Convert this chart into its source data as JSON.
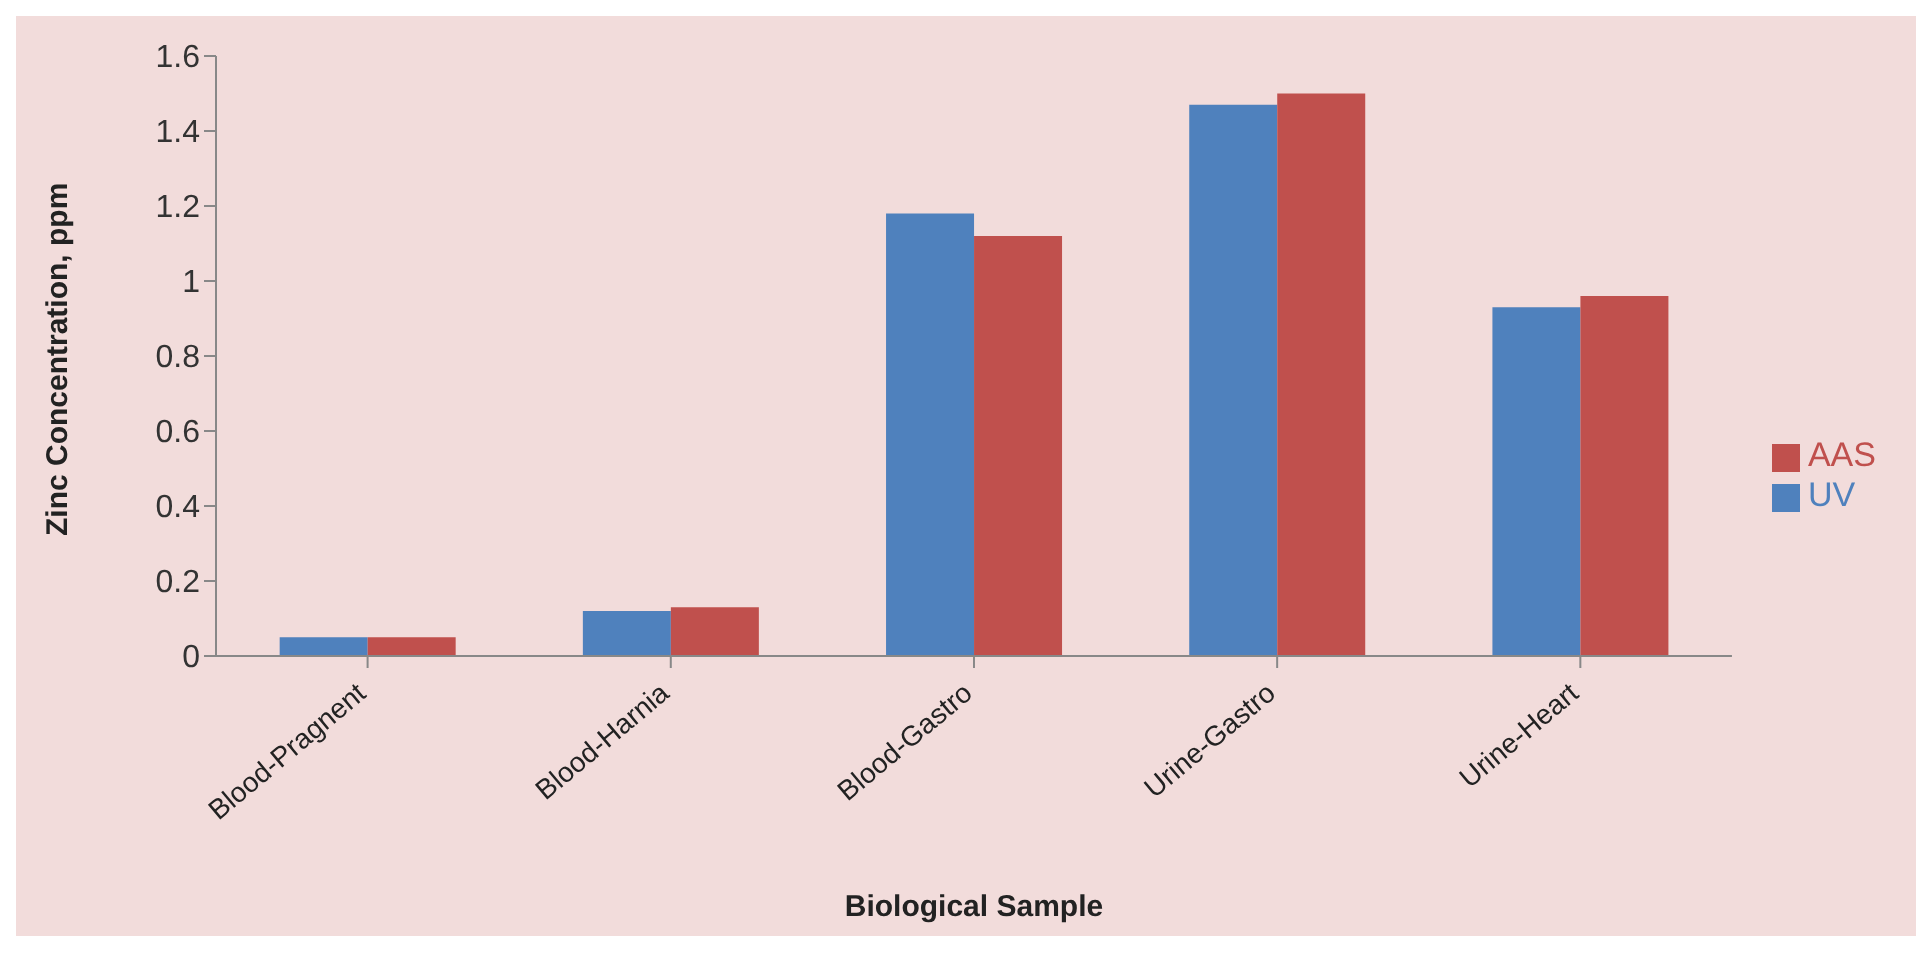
{
  "chart_data": {
    "type": "bar",
    "xlabel": "Biological Sample",
    "ylabel": "Zinc Concentration, ppm",
    "categories": [
      "Blood-Pragnent",
      "Blood-Harnia",
      "Blood-Gastro",
      "Urine-Gastro",
      "Urine-Heart"
    ],
    "series": [
      {
        "name": "UV",
        "color": "#4f81bd",
        "values": [
          0.05,
          0.12,
          1.18,
          1.47,
          0.93
        ]
      },
      {
        "name": "AAS",
        "color": "#c0504d",
        "values": [
          0.05,
          0.13,
          1.12,
          1.5,
          0.96
        ]
      }
    ],
    "ylim": [
      0,
      1.6
    ],
    "yticks": [
      0,
      0.2,
      0.4,
      0.6,
      0.8,
      1,
      1.2,
      1.4,
      1.6
    ],
    "grid": false,
    "legend": "right"
  }
}
